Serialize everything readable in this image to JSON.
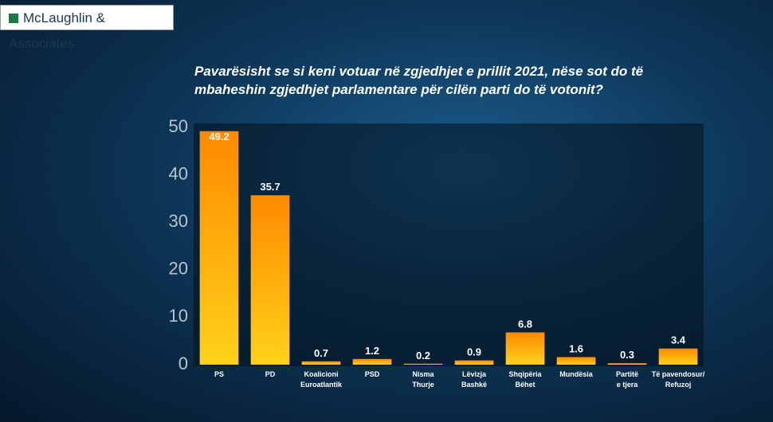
{
  "brand": "McLaughlin & Associates",
  "chart_data": {
    "type": "bar",
    "title": "Pavarësisht se si keni votuar në zgjedhjet e prillit 2021, nëse sot do të mbaheshin zgjedhjet parlamentare për cilën parti do të votonit?",
    "categories": [
      "PS",
      "PD",
      "Koalicioni\nEuroatlantik",
      "PSD",
      "Nisma\nThurje",
      "Lëvizja\nBashkë",
      "Shqipëria\nBëhet",
      "Mundësia",
      "Partitë\ne tjera",
      "Të pavendosur/\nRefuzoj"
    ],
    "values": [
      49.2,
      35.7,
      0.7,
      1.2,
      0.2,
      0.9,
      6.8,
      1.6,
      0.3,
      3.4
    ],
    "color": "#ff8a00",
    "ylim": [
      0,
      50
    ],
    "yticks": [
      0,
      10,
      20,
      30,
      40,
      50
    ],
    "grid": false
  }
}
